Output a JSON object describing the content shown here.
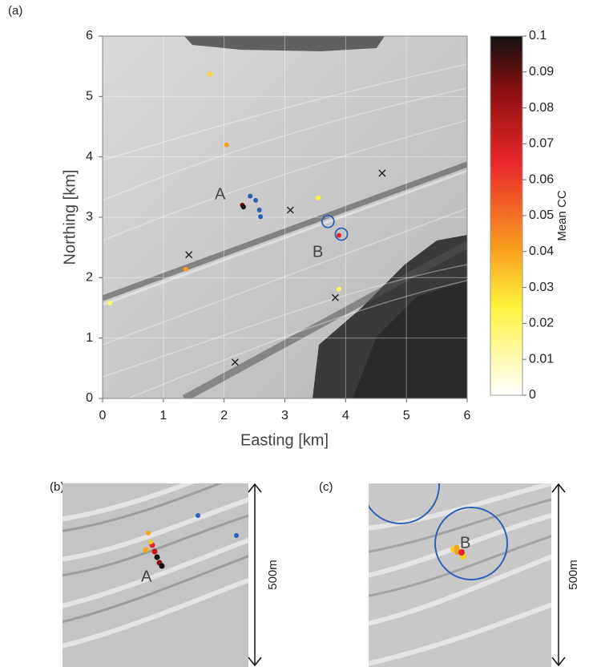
{
  "chart_data": {
    "type": "scatter",
    "panel_label": "(a)",
    "xlabel": "Easting [km]",
    "ylabel": "Northing [km]",
    "xlim": [
      0,
      6
    ],
    "ylim": [
      0,
      6
    ],
    "xticks": [
      0,
      1,
      2,
      3,
      4,
      5,
      6
    ],
    "yticks": [
      0,
      1,
      2,
      3,
      4,
      5,
      6
    ],
    "grid": true,
    "series": [
      {
        "marker": "dot",
        "x": [
          1.77,
          2.04,
          2.3,
          2.32,
          3.55,
          3.89,
          1.37,
          0.12,
          3.89
        ],
        "y": [
          5.37,
          4.2,
          3.2,
          3.17,
          3.32,
          2.7,
          2.14,
          1.58,
          1.81
        ],
        "values": [
          0.03,
          0.04,
          0.09,
          0.1,
          0.025,
          0.065,
          0.04,
          0.02,
          0.02
        ]
      },
      {
        "marker": "dot",
        "color": "#2f5fb3",
        "x": [
          2.43,
          2.52,
          2.58,
          2.6
        ],
        "y": [
          3.35,
          3.28,
          3.12,
          3.01
        ]
      },
      {
        "marker": "ring",
        "color": "#2f5fb3",
        "x": [
          3.71,
          3.93
        ],
        "y": [
          2.93,
          2.72
        ]
      },
      {
        "marker": "x",
        "color": "#222222",
        "x": [
          4.6,
          3.09,
          1.42,
          3.83,
          2.18
        ],
        "y": [
          3.73,
          3.12,
          2.38,
          1.67,
          0.6
        ]
      }
    ],
    "annotations": [
      "A",
      "B"
    ],
    "colorbar": {
      "label": "Mean CC",
      "lim": [
        0,
        0.1
      ],
      "ticks": [
        0,
        0.01,
        0.02,
        0.03,
        0.04,
        0.05,
        0.06,
        0.07,
        0.08,
        0.09,
        0.1
      ]
    },
    "insets": [
      {
        "panel_label": "(b)",
        "marker_label": "A",
        "scale_label": "500m"
      },
      {
        "panel_label": "(c)",
        "marker_label": "B",
        "scale_label": "500m"
      }
    ]
  }
}
